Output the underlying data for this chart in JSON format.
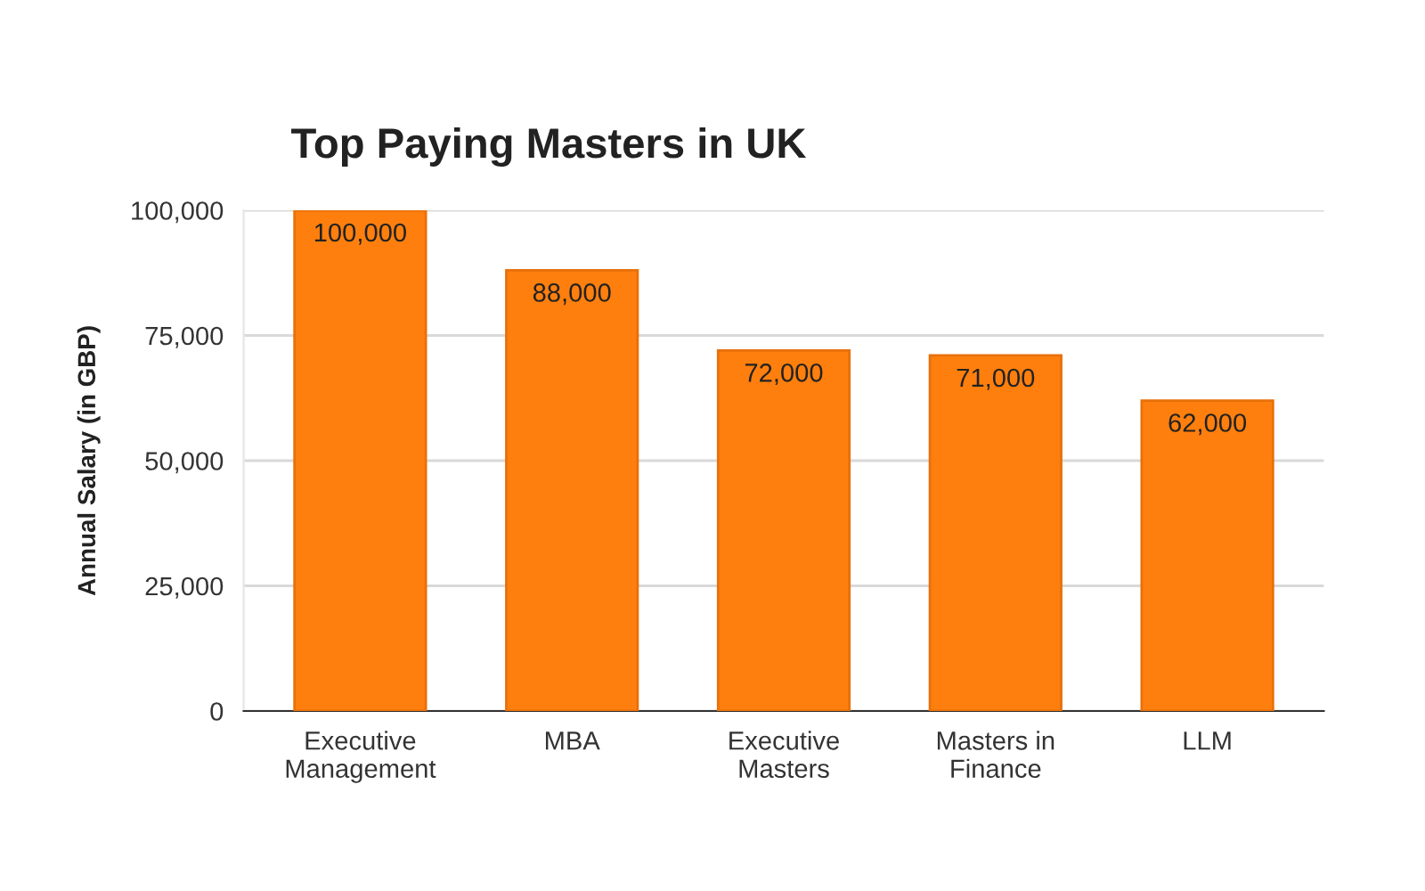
{
  "chart_data": {
    "type": "bar",
    "title": "Top Paying Masters in UK",
    "ylabel": "Annual Salary (in GBP)",
    "categories": [
      "Executive\nManagement",
      "MBA",
      "Executive\nMasters",
      "Masters in\nFinance",
      "LLM"
    ],
    "values": [
      100000,
      88000,
      72000,
      71000,
      62000
    ],
    "value_labels": [
      "100,000",
      "88,000",
      "72,000",
      "71,000",
      "62,000"
    ],
    "color": "#ff7f0e",
    "ylim": [
      0,
      100000
    ],
    "yticks": [
      {
        "value": 0,
        "label": "0"
      },
      {
        "value": 25000,
        "label": "25,000"
      },
      {
        "value": 50000,
        "label": "50,000"
      },
      {
        "value": 75000,
        "label": "75,000"
      },
      {
        "value": 100000,
        "label": "100,000"
      }
    ],
    "grid": "y",
    "legend": false
  }
}
